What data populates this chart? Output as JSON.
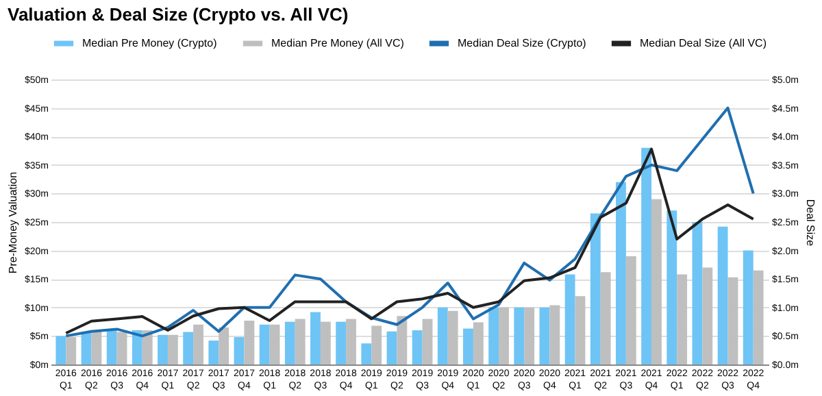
{
  "chart_data": {
    "type": "bar",
    "title": "Valuation & Deal Size (Crypto vs. All VC)",
    "ylabel": "Pre-Money Valuation",
    "y2label": "Deal Size",
    "categories": [
      "2016 Q1",
      "2016 Q2",
      "2016 Q3",
      "2016 Q4",
      "2017 Q1",
      "2017 Q2",
      "2017 Q3",
      "2017 Q4",
      "2018 Q1",
      "2018 Q2",
      "2018 Q3",
      "2018 Q4",
      "2019 Q1",
      "2019 Q2",
      "2019 Q3",
      "2019 Q4",
      "2020 Q1",
      "2020 Q2",
      "2020 Q3",
      "2020 Q4",
      "2021 Q1",
      "2021 Q2",
      "2021 Q3",
      "2021 Q4",
      "2022 Q1",
      "2022 Q2",
      "2022 Q3",
      "2022 Q4"
    ],
    "series": [
      {
        "name": "Median Pre Money (Crypto)",
        "color": "#6ec4f5",
        "values": [
          5,
          5.7,
          6,
          6,
          5.2,
          5.7,
          4.2,
          4.8,
          7,
          7.5,
          9.2,
          7.5,
          3.7,
          5.8,
          6,
          10,
          6.3,
          10,
          10,
          10,
          15.8,
          26.5,
          32,
          38,
          27,
          25,
          24.2,
          20
        ]
      },
      {
        "name": "Median Pre Money (All VC)",
        "color": "#bfbfbf",
        "values": [
          4.8,
          6,
          5.7,
          6,
          5.2,
          7,
          6.5,
          7.7,
          7,
          8,
          7.5,
          8,
          6.8,
          8.5,
          8,
          9.4,
          7.4,
          10,
          10,
          10.4,
          12,
          16.2,
          19,
          29,
          15.8,
          17,
          15.3,
          16.5
        ]
      },
      {
        "name": "Median Deal Size (Crypto)",
        "type": "line",
        "axis": "y2",
        "color": "#1f6fb0",
        "values": [
          0.5,
          0.58,
          0.62,
          0.5,
          0.65,
          0.95,
          0.58,
          1.0,
          1.0,
          1.57,
          1.5,
          1.1,
          0.82,
          0.7,
          1.0,
          1.43,
          0.8,
          1.05,
          1.78,
          1.48,
          1.85,
          2.6,
          3.3,
          3.5,
          3.4,
          3.95,
          4.5,
          3.0
        ]
      },
      {
        "name": "Median Deal Size (All VC)",
        "type": "line",
        "axis": "y2",
        "color": "#222222",
        "values": [
          0.55,
          0.76,
          0.8,
          0.84,
          0.6,
          0.85,
          0.98,
          1.0,
          0.77,
          1.1,
          1.1,
          1.1,
          0.8,
          1.1,
          1.15,
          1.25,
          1.0,
          1.1,
          1.47,
          1.52,
          1.7,
          2.58,
          2.83,
          3.78,
          2.2,
          2.55,
          2.8,
          2.55
        ]
      }
    ],
    "ylim": [
      0,
      50
    ],
    "yticks": [
      {
        "value": 0,
        "label": "$0m"
      },
      {
        "value": 5,
        "label": "$5m"
      },
      {
        "value": 10,
        "label": "$10m"
      },
      {
        "value": 15,
        "label": "$15m"
      },
      {
        "value": 20,
        "label": "$20m"
      },
      {
        "value": 25,
        "label": "$25m"
      },
      {
        "value": 30,
        "label": "$30m"
      },
      {
        "value": 35,
        "label": "$35m"
      },
      {
        "value": 40,
        "label": "$40m"
      },
      {
        "value": 45,
        "label": "$45m"
      },
      {
        "value": 50,
        "label": "$50m"
      }
    ],
    "y2lim": [
      0,
      5
    ],
    "y2ticks": [
      {
        "value": 0,
        "label": "$0.0m"
      },
      {
        "value": 0.5,
        "label": "$0.5m"
      },
      {
        "value": 1,
        "label": "$1.0m"
      },
      {
        "value": 1.5,
        "label": "$1.5m"
      },
      {
        "value": 2,
        "label": "$2.0m"
      },
      {
        "value": 2.5,
        "label": "$2.5m"
      },
      {
        "value": 3,
        "label": "$3.0m"
      },
      {
        "value": 3.5,
        "label": "$3.5m"
      },
      {
        "value": 4,
        "label": "$4.0m"
      },
      {
        "value": 4.5,
        "label": "$4.5m"
      },
      {
        "value": 5,
        "label": "$5.0m"
      }
    ],
    "grid": "y",
    "legend": "top",
    "marker": "none",
    "line_style": "solid"
  }
}
